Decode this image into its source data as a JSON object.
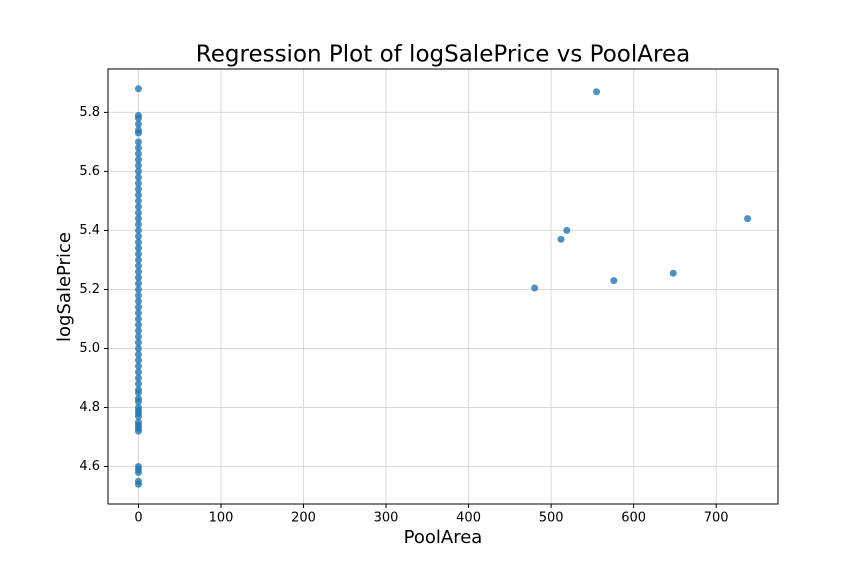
{
  "chart_data": {
    "type": "scatter",
    "title": "Regression Plot of logSalePrice vs PoolArea",
    "xlabel": "PoolArea",
    "ylabel": "logSalePrice",
    "x": [
      0,
      0,
      0,
      0,
      0,
      0,
      0,
      0,
      0,
      0,
      0,
      0,
      0,
      0,
      0,
      0,
      0,
      0,
      0,
      0,
      0,
      0,
      0,
      0,
      0,
      0,
      0,
      0,
      0,
      0,
      0,
      0,
      0,
      0,
      0,
      0,
      0,
      0,
      0,
      0,
      0,
      0,
      0,
      0,
      0,
      0,
      0,
      0,
      0,
      0,
      0,
      0,
      0,
      0,
      0,
      0,
      0,
      0,
      0,
      0,
      0,
      0,
      0,
      0,
      0,
      480,
      512,
      519,
      555,
      576,
      648,
      738
    ],
    "values": [
      4.54,
      4.55,
      4.58,
      4.59,
      4.6,
      4.72,
      4.73,
      4.74,
      4.75,
      4.77,
      4.78,
      4.79,
      4.8,
      4.82,
      4.83,
      4.85,
      4.86,
      4.88,
      4.9,
      4.92,
      4.94,
      4.96,
      4.98,
      5,
      5.02,
      5.04,
      5.06,
      5.08,
      5.1,
      5.12,
      5.14,
      5.16,
      5.18,
      5.2,
      5.22,
      5.24,
      5.26,
      5.28,
      5.3,
      5.32,
      5.34,
      5.36,
      5.38,
      5.4,
      5.42,
      5.44,
      5.46,
      5.48,
      5.5,
      5.52,
      5.54,
      5.56,
      5.58,
      5.6,
      5.62,
      5.64,
      5.66,
      5.68,
      5.7,
      5.73,
      5.74,
      5.76,
      5.78,
      5.79,
      5.88,
      5.205,
      5.37,
      5.4,
      5.87,
      5.23,
      5.255,
      5.44
    ],
    "color": "#1f77b4",
    "xlim": [
      -36.9,
      774.9
    ],
    "xticks": [
      0,
      100,
      200,
      300,
      400,
      500,
      600,
      700
    ],
    "ylim": [
      4.473,
      5.947
    ],
    "yticks": [
      4.6,
      4.8,
      {
        "value": 5,
        "label": "5.0"
      },
      5.2,
      5.4,
      5.6,
      5.8
    ],
    "grid": true
  }
}
